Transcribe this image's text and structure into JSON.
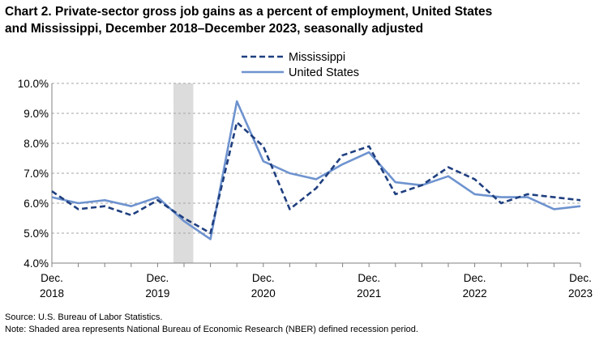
{
  "title_line1": "Chart 2. Private-sector gross job gains as a percent of employment, United States",
  "title_line2": "and Mississippi,  December 2018–December 2023, seasonally adjusted",
  "source": "Source: U.S. Bureau of Labor Statistics.",
  "note": "Note: Shaded area represents National Bureau of Economic Research (NBER) defined  recession period.",
  "colors": {
    "mississippi": "#1F3F7F",
    "united_states": "#6E93CF",
    "recession": "#DCDCDC",
    "grid": "#A6A6A6",
    "axis": "#808080"
  },
  "chart_data": {
    "type": "line",
    "x": [
      "Dec 2018",
      "Mar 2019",
      "Jun 2019",
      "Sep 2019",
      "Dec 2019",
      "Mar 2020",
      "Jun 2020",
      "Sep 2020",
      "Dec 2020",
      "Mar 2021",
      "Jun 2021",
      "Sep 2021",
      "Dec 2021",
      "Mar 2022",
      "Jun 2022",
      "Sep 2022",
      "Dec 2022",
      "Mar 2023",
      "Jun 2023",
      "Sep 2023",
      "Dec 2023"
    ],
    "x_tick_labels": [
      {
        "index": 0,
        "line1": "Dec.",
        "line2": "2018"
      },
      {
        "index": 4,
        "line1": "Dec.",
        "line2": "2019"
      },
      {
        "index": 8,
        "line1": "Dec.",
        "line2": "2020"
      },
      {
        "index": 12,
        "line1": "Dec.",
        "line2": "2021"
      },
      {
        "index": 16,
        "line1": "Dec.",
        "line2": "2022"
      },
      {
        "index": 20,
        "line1": "Dec.",
        "line2": "2023"
      }
    ],
    "y_ticks": [
      "4.0%",
      "5.0%",
      "6.0%",
      "7.0%",
      "8.0%",
      "9.0%",
      "10.0%"
    ],
    "ylim": [
      4.0,
      10.0
    ],
    "grid": true,
    "legend_position": "top-center",
    "recession_shade": {
      "from_index": 4.6,
      "to_index": 5.35
    },
    "series": [
      {
        "name": "Mississippi",
        "style": "dashed",
        "values": [
          6.4,
          5.8,
          5.9,
          5.6,
          6.1,
          5.5,
          5.0,
          8.7,
          7.9,
          5.8,
          6.5,
          7.6,
          7.9,
          6.3,
          6.6,
          7.2,
          6.8,
          6.0,
          6.3,
          6.2,
          6.1
        ]
      },
      {
        "name": "United States",
        "style": "solid",
        "values": [
          6.2,
          6.0,
          6.1,
          5.9,
          6.2,
          5.4,
          4.8,
          9.4,
          7.4,
          7.0,
          6.8,
          7.3,
          7.7,
          6.7,
          6.6,
          6.9,
          6.3,
          6.2,
          6.2,
          5.8,
          5.9
        ]
      }
    ]
  }
}
